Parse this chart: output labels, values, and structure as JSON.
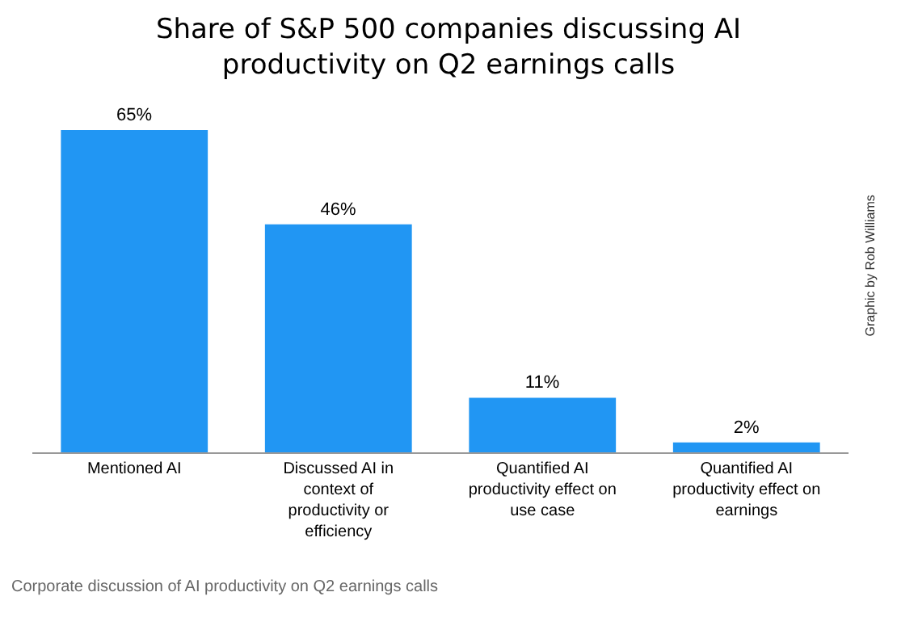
{
  "chart_data": {
    "type": "bar",
    "title": "Share of S&P 500 companies discussing AI productivity on Q2 earnings calls",
    "categories": [
      "Mentioned AI",
      "Discussed AI in context of productivity or efficiency",
      "Quantified AI productivity effect on use case",
      "Quantified AI productivity effect on earnings"
    ],
    "values": [
      65,
      46,
      11,
      2
    ],
    "value_labels": [
      "65%",
      "46%",
      "11%",
      "2%"
    ],
    "color": "#2196f3",
    "annotations": [
      "Graphic by Rob Williams",
      "Corporate discussion of AI productivity on Q2 earnings calls"
    ]
  }
}
